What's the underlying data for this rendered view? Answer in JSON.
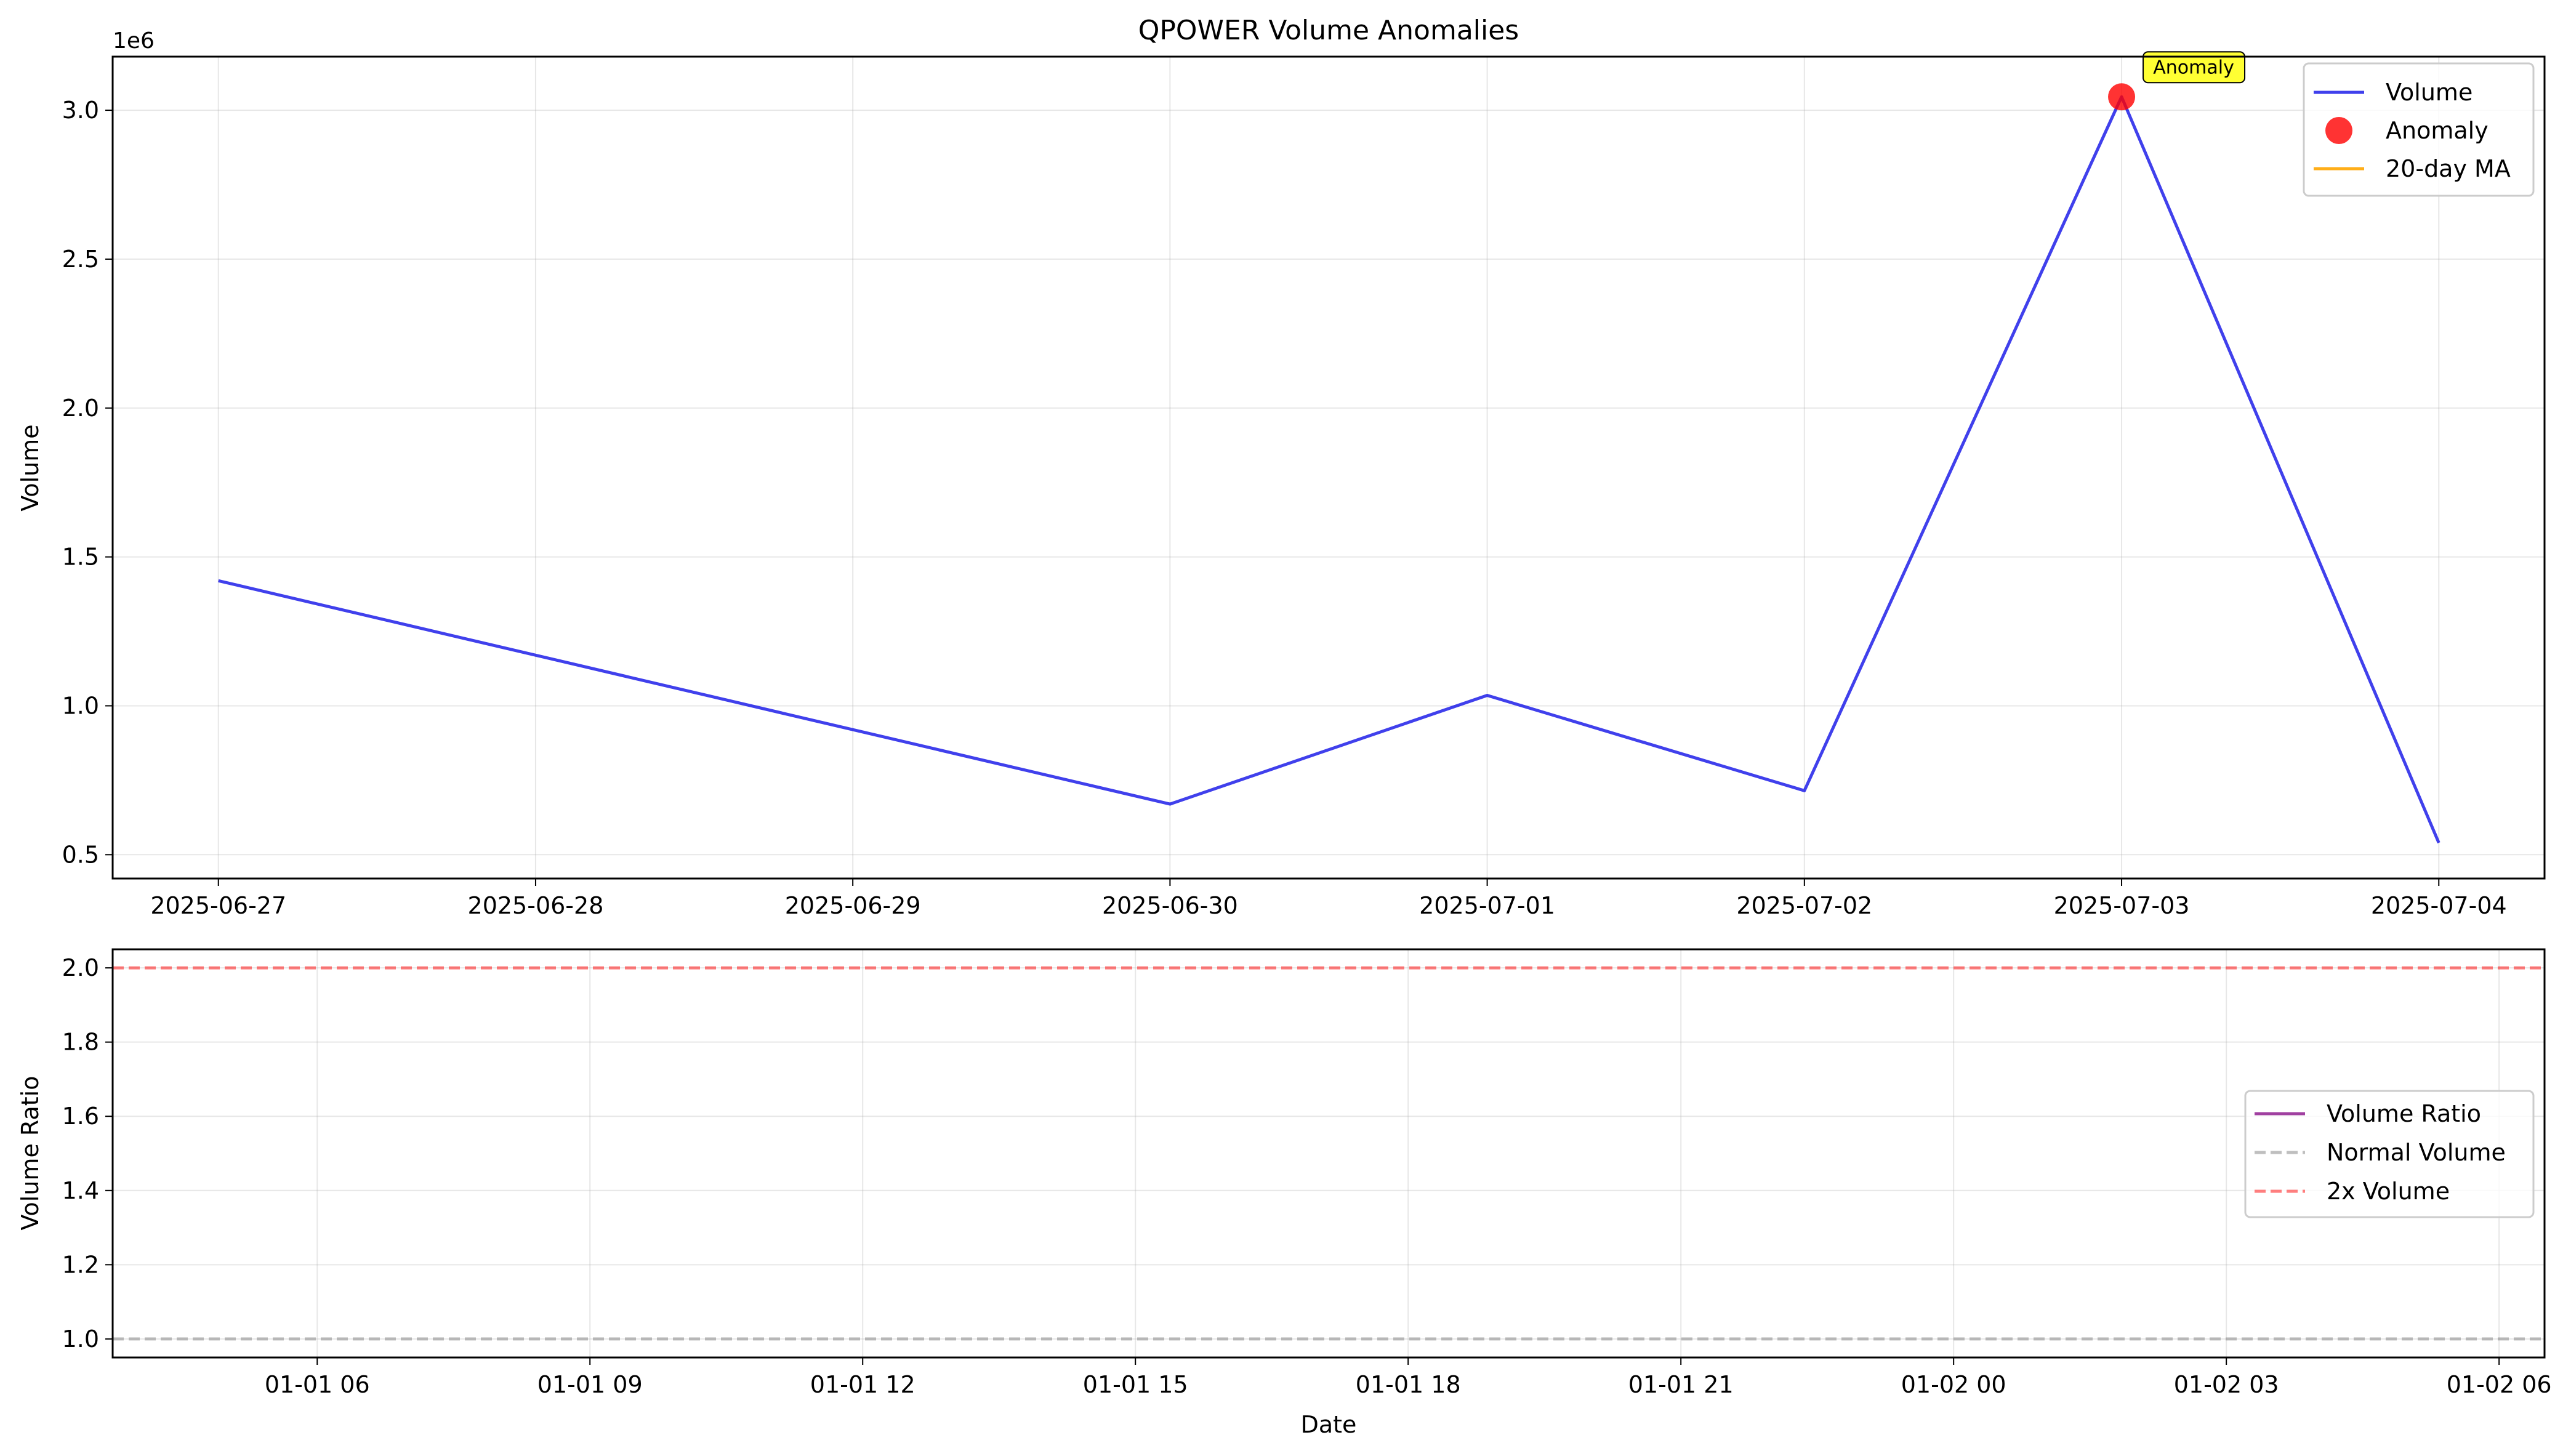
{
  "chart_data": [
    {
      "type": "line",
      "title": "QPOWER Volume Anomalies",
      "xlabel": "",
      "ylabel": "Volume",
      "y_offset_label": "1e6",
      "x": [
        "2025-06-27",
        "2025-06-30",
        "2025-07-01",
        "2025-07-02",
        "2025-07-03",
        "2025-07-04"
      ],
      "xlim": [
        "2025-06-26 16:00",
        "2025-07-04 08:00"
      ],
      "ylim": [
        0.42,
        3.18
      ],
      "xticks": [
        "2025-06-27",
        "2025-06-28",
        "2025-06-29",
        "2025-06-30",
        "2025-07-01",
        "2025-07-02",
        "2025-07-03",
        "2025-07-04"
      ],
      "yticks": [
        "0.5",
        "1.0",
        "1.5",
        "2.0",
        "2.5",
        "3.0"
      ],
      "series": [
        {
          "name": "Volume",
          "kind": "line",
          "color": "#0000e6",
          "x": [
            "2025-06-27",
            "2025-06-30",
            "2025-07-01",
            "2025-07-02",
            "2025-07-03",
            "2025-07-04"
          ],
          "values": [
            1.42,
            0.67,
            1.035,
            0.715,
            3.045,
            0.54
          ]
        },
        {
          "name": "Anomaly",
          "kind": "scatter",
          "color": "#ff0000",
          "x": [
            "2025-07-03"
          ],
          "values": [
            3.045
          ]
        },
        {
          "name": "20-day MA",
          "kind": "line",
          "color": "#ffa500",
          "x": [],
          "values": []
        }
      ],
      "annotations": [
        {
          "text": "Anomaly",
          "x": "2025-07-03",
          "y": 3.045
        }
      ],
      "grid": true,
      "legend": "upper right"
    },
    {
      "type": "line",
      "title": "",
      "xlabel": "Date",
      "ylabel": "Volume Ratio",
      "xlim": [
        "01-01 03:45",
        "01-02 06:30"
      ],
      "ylim": [
        0.95,
        2.05
      ],
      "xticks": [
        "01-01 06",
        "01-01 09",
        "01-01 12",
        "01-01 15",
        "01-01 18",
        "01-01 21",
        "01-02 00",
        "01-02 03",
        "01-02 06"
      ],
      "yticks": [
        "1.0",
        "1.2",
        "1.4",
        "1.6",
        "1.8",
        "2.0"
      ],
      "series": [
        {
          "name": "Volume Ratio",
          "kind": "line",
          "color": "#800080",
          "values": []
        },
        {
          "name": "Normal Volume",
          "kind": "hline",
          "color": "#808080",
          "y": 1.0
        },
        {
          "name": "2x Volume",
          "kind": "hline",
          "color": "#ff0000",
          "y": 2.0
        }
      ],
      "grid": true,
      "legend": "center right"
    }
  ]
}
